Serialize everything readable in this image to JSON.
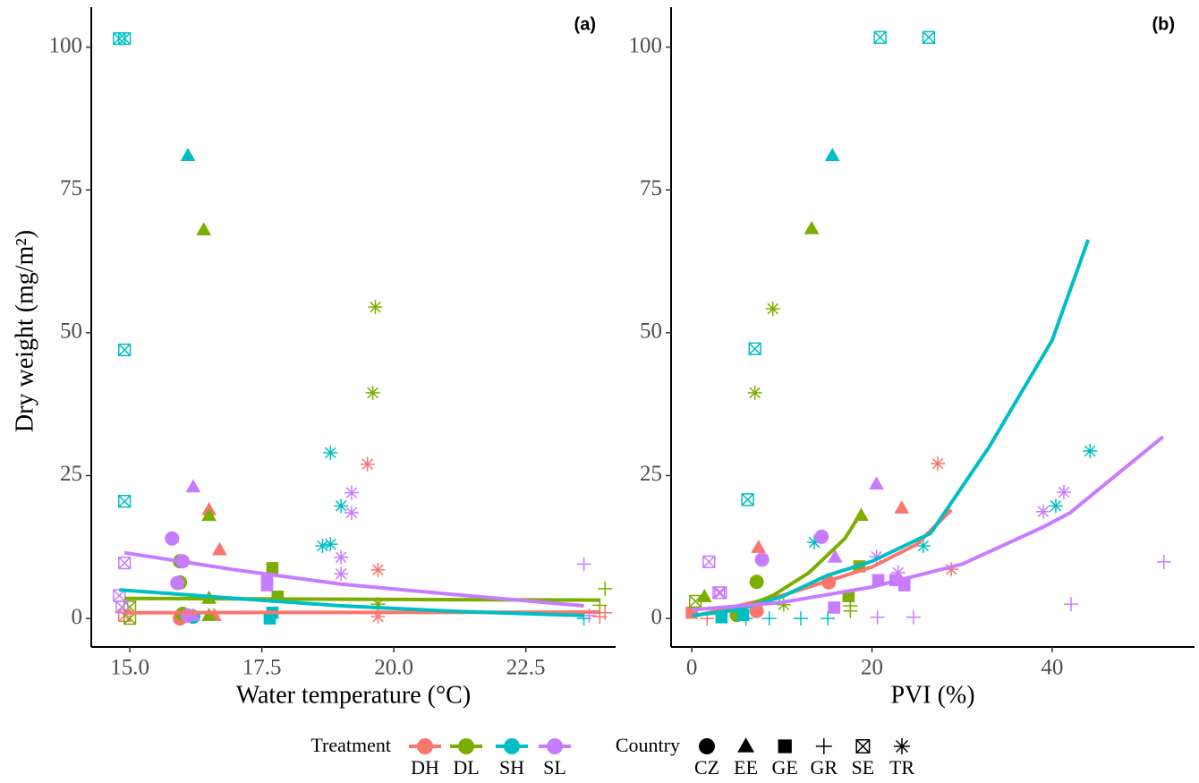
{
  "chart_data": [
    {
      "type": "scatter",
      "panel_label": "(a)",
      "x_label": "Water temperature (°C)",
      "y_label": "Dry weight (mg/m²)",
      "xlim": [
        14.27,
        24.2
      ],
      "ylim": [
        -5,
        107
      ],
      "xticks": [
        {
          "value": 15,
          "label": "15.0"
        },
        17.5,
        {
          "value": 20,
          "label": "20.0"
        },
        22.5
      ],
      "yticks": [
        0,
        25,
        50,
        75,
        100
      ],
      "series": [
        {
          "name": "DH",
          "color": "#F8766D",
          "x": [
            14.9,
            16.5,
            16.7,
            16.6,
            15.95,
            19.5,
            19.7,
            19.7,
            23.9,
            24.0
          ],
          "values": [
            0.5,
            19,
            12,
            0.5,
            0,
            27,
            8.5,
            0.3,
            0.3,
            1
          ],
          "countries": [
            "SE",
            "EE",
            "EE",
            "EE",
            "CZ",
            "TR",
            "TR",
            "TR",
            "GR",
            "GR"
          ],
          "fit_x": [
            14.9,
            23.9
          ],
          "fit_values": [
            1,
            1.1
          ]
        },
        {
          "name": "DL",
          "color": "#7CAE00",
          "x": [
            15.0,
            15.0,
            16.4,
            16.5,
            16.5,
            16.5,
            15.95,
            15.95,
            16.0,
            17.7,
            17.8,
            19.65,
            19.6,
            19.7,
            24.0,
            23.9
          ],
          "values": [
            2,
            0,
            68,
            18,
            3.5,
            0.5,
            10,
            6.3,
            0.8,
            8.8,
            3.8,
            54.5,
            39.5,
            2.5,
            5.2,
            2.3
          ],
          "countries": [
            "SE",
            "SE",
            "EE",
            "EE",
            "EE",
            "EE",
            "CZ",
            "CZ",
            "CZ",
            "GE",
            "GE",
            "TR",
            "TR",
            "TR",
            "GR",
            "GR"
          ],
          "fit_x": [
            14.9,
            23.9
          ],
          "fit_values": [
            3.5,
            3.2
          ]
        },
        {
          "name": "SH",
          "color": "#00BFC4",
          "x": [
            14.8,
            14.9,
            14.9,
            14.9,
            16.1,
            16.2,
            17.65,
            17.7,
            18.8,
            19.0,
            18.8,
            18.65,
            23.6
          ],
          "values": [
            101.5,
            101.5,
            47,
            20.5,
            81,
            0.3,
            0,
            1,
            29,
            19.7,
            13,
            12.7,
            0
          ],
          "countries": [
            "SE",
            "SE",
            "SE",
            "SE",
            "EE",
            "CZ",
            "GE",
            "GE",
            "TR",
            "TR",
            "TR",
            "TR",
            "GR"
          ],
          "fit_x": [
            14.8,
            17,
            19,
            21,
            23.6
          ],
          "fit_values": [
            5,
            3.5,
            2.2,
            1.3,
            0.5
          ]
        },
        {
          "name": "SL",
          "color": "#C77CFF",
          "x": [
            14.9,
            14.8,
            14.85,
            16.2,
            16.2,
            15.8,
            16.0,
            15.9,
            16.1,
            17.6,
            17.6,
            19.2,
            19.2,
            19.0,
            19.0,
            23.6,
            23.7
          ],
          "values": [
            9.7,
            4,
            2,
            23,
            0.5,
            14,
            10,
            6.2,
            0.5,
            5.8,
            6.8,
            22,
            18.5,
            10.7,
            7.8,
            9.5,
            0.5
          ],
          "countries": [
            "SE",
            "SE",
            "SE",
            "EE",
            "EE",
            "CZ",
            "CZ",
            "CZ",
            "CZ",
            "GE",
            "GE",
            "TR",
            "TR",
            "TR",
            "TR",
            "GR",
            "GR"
          ],
          "fit_x": [
            14.9,
            17,
            19,
            21,
            23.6
          ],
          "fit_values": [
            11.5,
            8.5,
            6,
            4.3,
            2.2
          ]
        }
      ]
    },
    {
      "type": "scatter",
      "panel_label": "(b)",
      "x_label": "PVI (%)",
      "xlim": [
        -2.3,
        55.8
      ],
      "ylim": [
        -5,
        107
      ],
      "xticks": [
        0,
        20,
        40
      ],
      "yticks": [
        0,
        25,
        50,
        75,
        100
      ],
      "series": [
        {
          "name": "DH",
          "color": "#F8766D",
          "x": [
            23.3,
            7.4,
            15.2,
            7.2,
            0,
            27.3,
            28.8,
            1.7
          ],
          "values": [
            19.3,
            12.4,
            6.3,
            1.3,
            1,
            27.1,
            8.6,
            0
          ],
          "countries": [
            "EE",
            "EE",
            "CZ",
            "CZ",
            "GE",
            "TR",
            "TR",
            "GR"
          ],
          "fit_x": [
            0,
            10,
            20,
            25,
            28.8
          ],
          "fit_values": [
            0.3,
            4,
            9,
            13,
            19
          ]
        },
        {
          "name": "DL",
          "color": "#7CAE00",
          "x": [
            0.4,
            13.3,
            18.8,
            1.4,
            7.2,
            5,
            18.6,
            17.4,
            9.0,
            7.0,
            10.2,
            17.6,
            17.6
          ],
          "values": [
            3,
            68.2,
            18,
            3.8,
            6.4,
            0.6,
            9.1,
            3.9,
            54.2,
            39.5,
            2.4,
            1.3,
            2.2
          ],
          "countries": [
            "SE",
            "EE",
            "EE",
            "EE",
            "CZ",
            "CZ",
            "GE",
            "GE",
            "TR",
            "TR",
            "TR",
            "GR",
            "GR"
          ],
          "fit_x": [
            0,
            5,
            9,
            13,
            17,
            18.8
          ],
          "fit_values": [
            0.5,
            1.5,
            4,
            8,
            14,
            18.5
          ]
        },
        {
          "name": "SH",
          "color": "#00BFC4",
          "x": [
            20.9,
            26.3,
            7.0,
            6.2,
            15.6,
            3.3,
            5.7,
            44.2,
            40.4,
            13.6,
            25.7,
            12.1,
            15.1,
            8.6,
            6
          ],
          "values": [
            101.7,
            101.7,
            47.2,
            20.8,
            81,
            0.2,
            0.6,
            29.3,
            19.7,
            13.3,
            12.7,
            0,
            0,
            0,
            0
          ],
          "countries": [
            "SE",
            "SE",
            "SE",
            "SE",
            "EE",
            "GE",
            "GE",
            "TR",
            "TR",
            "TR",
            "TR",
            "GR",
            "GR",
            "GR",
            "GR"
          ],
          "fit_x": [
            0,
            5,
            10,
            15,
            20,
            26.5,
            33,
            40,
            44
          ],
          "fit_values": [
            0.5,
            1.5,
            3.8,
            7.5,
            10,
            14.9,
            30,
            48.7,
            66.3
          ]
        },
        {
          "name": "SL",
          "color": "#C77CFF",
          "x": [
            1.9,
            3,
            3.2,
            20.5,
            15.9,
            14.4,
            7.8,
            20.7,
            22.6,
            23.6,
            15.8,
            41.3,
            39.0,
            20.5,
            22.9,
            52.4,
            42.1,
            20.6,
            24.6
          ],
          "values": [
            9.9,
            4.5,
            4.5,
            23.5,
            10.7,
            14.3,
            10.3,
            6.7,
            6.7,
            5.8,
            1.9,
            22.1,
            18.7,
            10.8,
            8,
            9.9,
            2.5,
            0.2,
            0.2
          ],
          "countries": [
            "SE",
            "SE",
            "SE",
            "EE",
            "EE",
            "CZ",
            "CZ",
            "GE",
            "GE",
            "GE",
            "GE",
            "TR",
            "TR",
            "TR",
            "TR",
            "GR",
            "GR",
            "GR",
            "GR"
          ],
          "fit_x": [
            0,
            10,
            20,
            30,
            39,
            42,
            52.3
          ],
          "fit_values": [
            1.5,
            2.8,
            5.5,
            9.5,
            16,
            18.5,
            31.8
          ]
        }
      ]
    }
  ],
  "legend": {
    "treatment_title": "Treatment",
    "country_title": "Country",
    "countries": [
      {
        "name": "CZ",
        "shape": "circle"
      },
      {
        "name": "EE",
        "shape": "triangle"
      },
      {
        "name": "GE",
        "shape": "square"
      },
      {
        "name": "GR",
        "shape": "plus"
      },
      {
        "name": "SE",
        "shape": "boxcross"
      },
      {
        "name": "TR",
        "shape": "asterisk"
      }
    ]
  }
}
